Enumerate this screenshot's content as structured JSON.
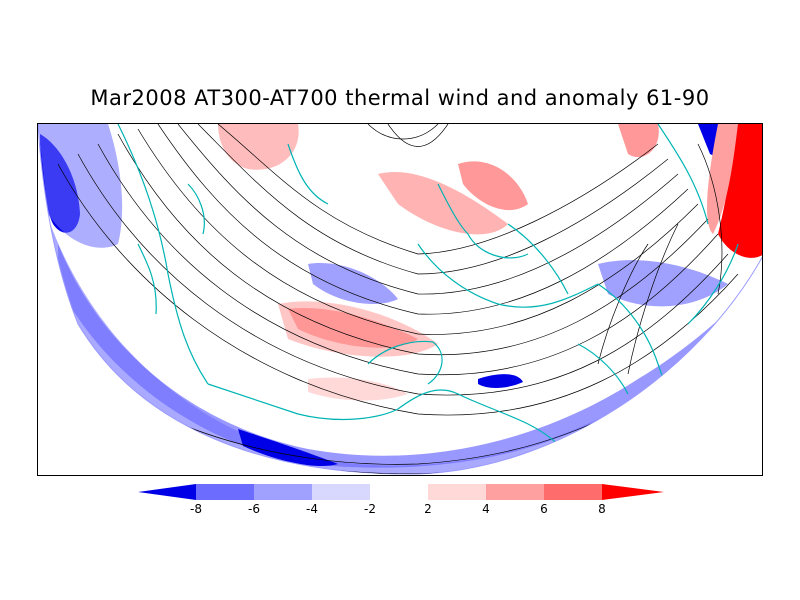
{
  "title": "Mar2008 AT300-AT700 thermal wind and anomaly 61-90",
  "colors": {
    "neg_strong": "#0000e6",
    "neg_mid2": "#6c6cff",
    "neg_mid1": "#a0a0ff",
    "neg_light": "#d8d8ff",
    "neutral": "#ffffff",
    "pos_light": "#ffd8d8",
    "pos_mid1": "#ffa0a0",
    "pos_mid2": "#ff6c6c",
    "pos_strong": "#ff0000",
    "coast": "#00b4b4",
    "streamline": "#000000"
  },
  "colorbar": {
    "ticks": [
      "-8",
      "-6",
      "-4",
      "-2",
      "2",
      "4",
      "6",
      "8"
    ]
  }
}
